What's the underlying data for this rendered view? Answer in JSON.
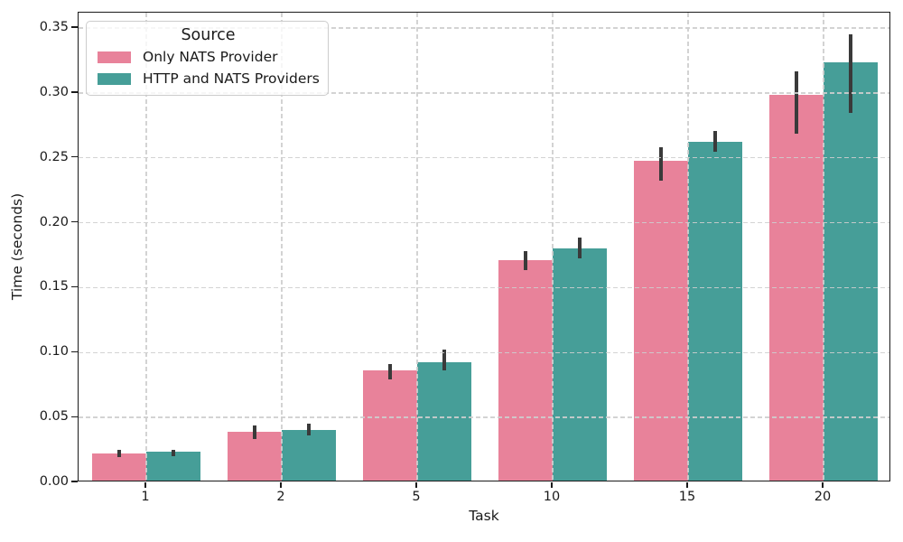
{
  "chart_data": {
    "type": "bar",
    "title": "",
    "xlabel": "Task",
    "ylabel": "Time (seconds)",
    "categories": [
      "1",
      "2",
      "5",
      "10",
      "15",
      "20"
    ],
    "series": [
      {
        "name": "Only NATS Provider",
        "color": "#e8829a",
        "values": [
          0.021,
          0.0375,
          0.085,
          0.17,
          0.246,
          0.297
        ],
        "ci_low": [
          0.018,
          0.032,
          0.078,
          0.162,
          0.231,
          0.267
        ],
        "ci_high": [
          0.024,
          0.0425,
          0.09,
          0.177,
          0.257,
          0.315
        ]
      },
      {
        "name": "HTTP and NATS Providers",
        "color": "#469e98",
        "values": [
          0.022,
          0.039,
          0.091,
          0.179,
          0.261,
          0.322
        ],
        "ci_low": [
          0.019,
          0.0345,
          0.085,
          0.171,
          0.253,
          0.283
        ],
        "ci_high": [
          0.024,
          0.044,
          0.101,
          0.187,
          0.269,
          0.344
        ]
      }
    ],
    "legend": {
      "title": "Source",
      "position": "upper-left"
    },
    "ylim": [
      0,
      0.3618
    ],
    "yticks": [
      0,
      0.05,
      0.1,
      0.15,
      0.2,
      0.25,
      0.3,
      0.35
    ],
    "grid": {
      "horizontal": true,
      "vertical": true,
      "style": "dashed",
      "color": "#cecece"
    },
    "error_bar_color": "#3a3a3a"
  }
}
